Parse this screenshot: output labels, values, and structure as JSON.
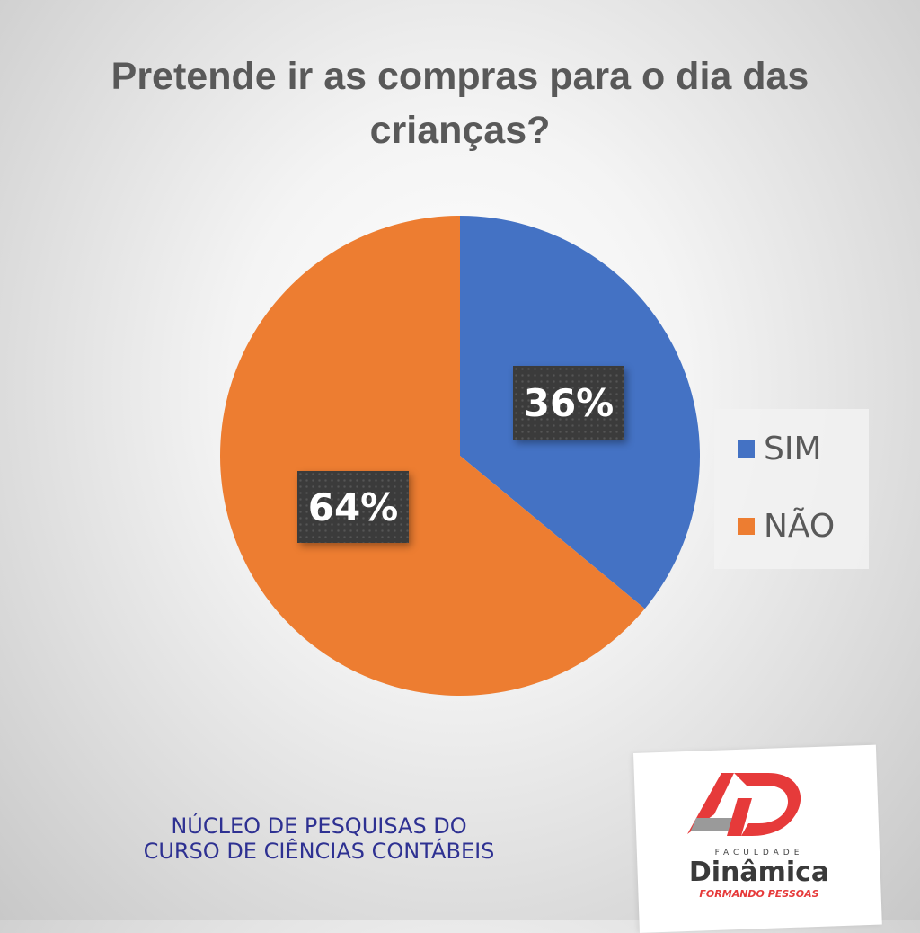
{
  "title_lines": [
    "Pretende ir as compras para o dia das",
    "crianças?"
  ],
  "chart_data": {
    "type": "pie",
    "categories": [
      "SIM",
      "NÃO"
    ],
    "values": [
      36,
      64
    ],
    "data_labels": [
      "36%",
      "64%"
    ],
    "colors": [
      "#4472c4",
      "#ed7d31"
    ],
    "legend_placement": "right",
    "title": "Pretende ir as compras para o dia das crianças?"
  },
  "footer_lines": [
    "NÚCLEO DE PESQUISAS DO",
    "CURSO DE CIÊNCIAS CONTÁBEIS"
  ],
  "logo": {
    "subtitle": "FACULDADE",
    "name": "Dinâmica",
    "tagline": "FORMANDO PESSOAS",
    "colors": {
      "red": "#e63a3a",
      "gray": "#9a9a9a"
    }
  }
}
